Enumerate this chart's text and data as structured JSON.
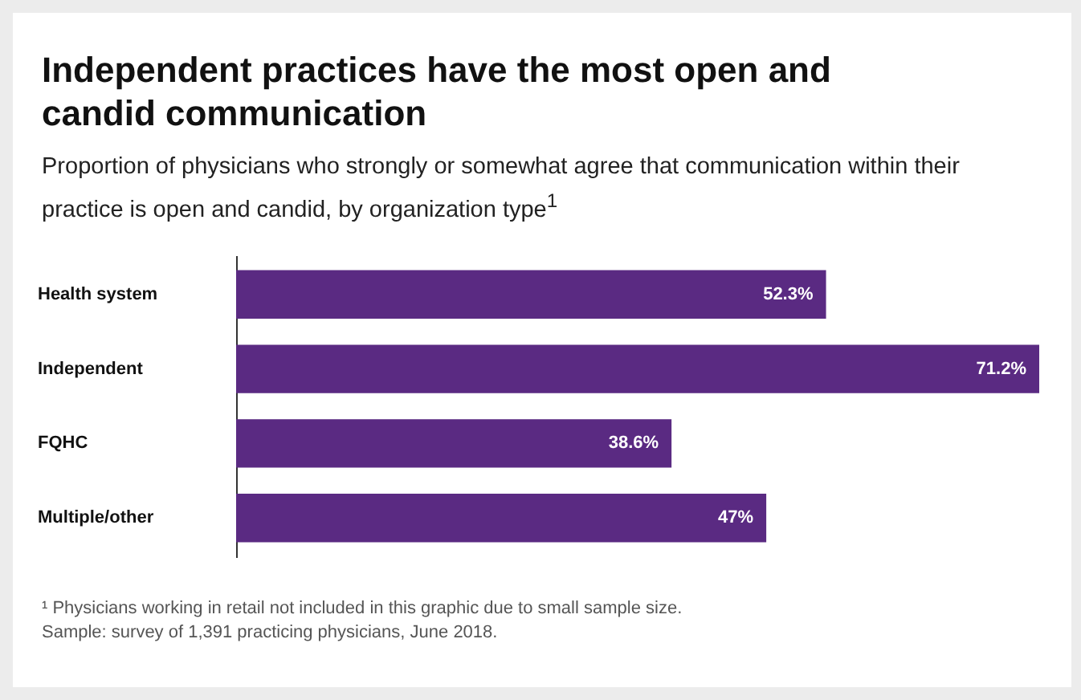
{
  "chart_data": {
    "type": "bar",
    "orientation": "horizontal",
    "title": "Independent practices have the most open and candid communication",
    "subtitle": "Proportion of physicians who strongly or somewhat agree that communication within their practice is open and candid, by organization type$^{1}$",
    "categories": [
      "Health system",
      "Independent",
      "FQHC",
      "Multiple/other"
    ],
    "values": [
      52.3,
      71.2,
      38.6,
      47
    ],
    "value_labels": [
      "52.3%",
      "71.2%",
      "38.6%",
      "47%"
    ],
    "color": "#5a2a82",
    "annotations": [
      "¹ Physicians working in retail not included in this graphic due to small sample size.",
      "Sample: survey of 1,391 practicing physicians, June 2018."
    ]
  }
}
